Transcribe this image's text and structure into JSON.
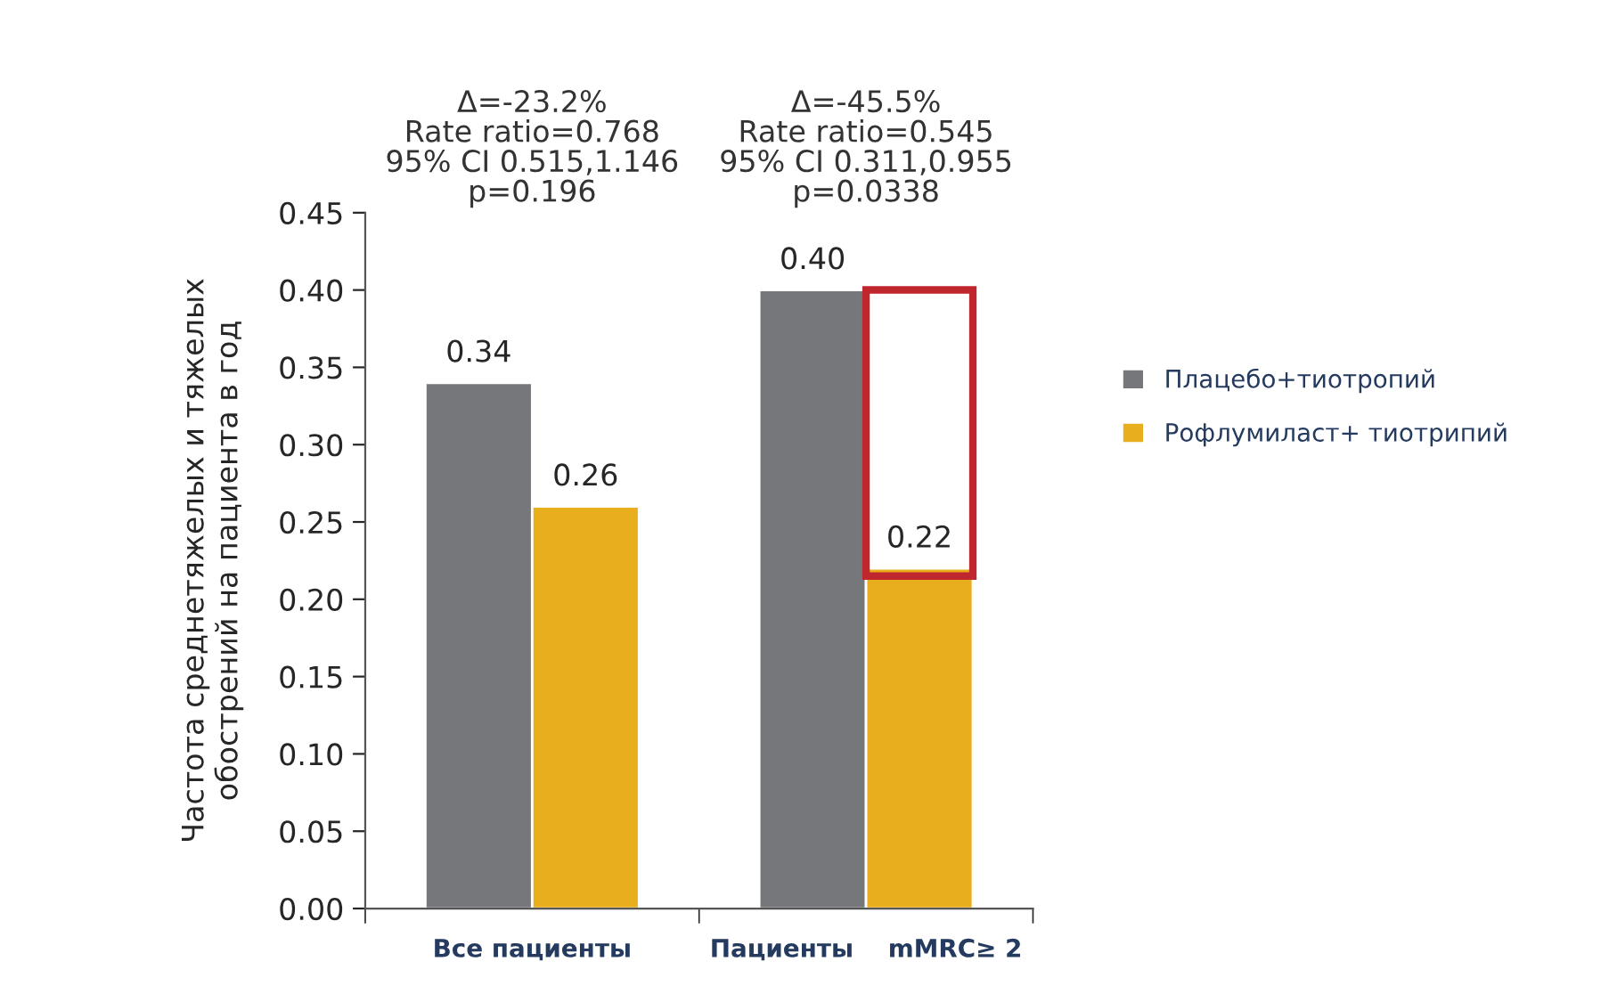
{
  "chart_data": {
    "type": "bar",
    "ylabel": "Частота среднетяжелых и тяжелых\nобострений на пациента в год",
    "categories": [
      "Все пациенты",
      "Пациенты    mMRC≥ 2"
    ],
    "series": [
      {
        "name": "Плацебо+тиотропий",
        "color": "#76777b",
        "values": [
          0.34,
          0.4
        ],
        "value_labels": [
          "0.34",
          "0.40"
        ]
      },
      {
        "name": "Рофлумиласт+ тиотрипий",
        "color": "#e8ae1e",
        "values": [
          0.26,
          0.22
        ],
        "value_labels": [
          "0.26",
          "0.22"
        ]
      }
    ],
    "ylim": [
      0,
      0.45
    ],
    "yticks": [
      {
        "value": 0,
        "label": "0.00"
      },
      {
        "value": 0.05,
        "label": "0.05"
      },
      {
        "value": 0.1,
        "label": "0.10"
      },
      {
        "value": 0.15,
        "label": "0.15"
      },
      {
        "value": 0.2,
        "label": "0.20"
      },
      {
        "value": 0.25,
        "label": "0.25"
      },
      {
        "value": 0.3,
        "label": "0.30"
      },
      {
        "value": 0.35,
        "label": "0.35"
      },
      {
        "value": 0.4,
        "label": "0.40"
      },
      {
        "value": 0.45,
        "label": "0.45"
      }
    ],
    "annotations": [
      "Δ=-23.2%\nRate ratio=0.768\n95% CI 0.515,1.146\np=0.196",
      "Δ=-45.5%\nRate ratio=0.545\n95% CI 0.311,0.955\np=0.0338"
    ],
    "grid": false,
    "legend": "right"
  }
}
